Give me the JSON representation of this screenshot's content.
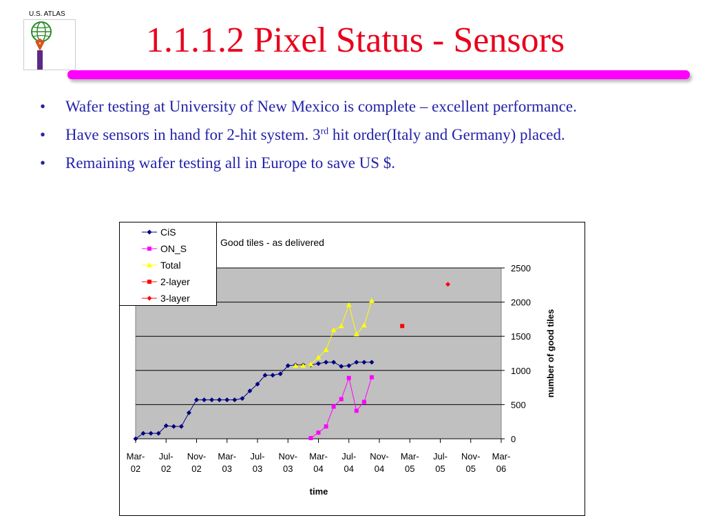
{
  "header": {
    "logo_text": "U.S. ATLAS",
    "title": "1.1.1.2 Pixel Status - Sensors"
  },
  "bullets": [
    {
      "text": "Wafer testing at University of New Mexico is complete – excellent performance."
    },
    {
      "text_before": "Have sensors in hand for 2-hit system. 3",
      "sup": "rd",
      "text_after": " hit order(Italy and Germany) placed."
    },
    {
      "text": "Remaining wafer testing all in Europe to save US $."
    }
  ],
  "colors": {
    "title": "#e8001c",
    "bullet_text": "#2222aa",
    "accent_bar": "#ff00ff",
    "plot_area": "#c0c0c0",
    "CiS": "#000080",
    "ON_S": "#ff00ff",
    "Total": "#ffff00",
    "2-layer": "#ff0000",
    "3-layer": "#ff0000"
  },
  "chart_data": {
    "type": "line",
    "title": "Good tiles - as delivered",
    "xlabel": "time",
    "ylabel": "number of good tiles",
    "ylim": [
      0,
      2500
    ],
    "yticks": [
      0,
      500,
      1000,
      1500,
      2000,
      2500
    ],
    "xticks": [
      "Mar-02",
      "Jul-02",
      "Nov-02",
      "Mar-03",
      "Jul-03",
      "Nov-03",
      "Mar-04",
      "Jul-04",
      "Nov-04",
      "Mar-05",
      "Jul-05",
      "Nov-05",
      "Mar-06"
    ],
    "grid": "horizontal",
    "legend": "top-left",
    "series": [
      {
        "name": "CiS",
        "marker": "diamond",
        "points": [
          [
            "2002-03-01",
            0
          ],
          [
            "2002-04-01",
            80
          ],
          [
            "2002-05-01",
            80
          ],
          [
            "2002-06-01",
            80
          ],
          [
            "2002-07-01",
            190
          ],
          [
            "2002-08-01",
            180
          ],
          [
            "2002-09-01",
            180
          ],
          [
            "2002-10-01",
            380
          ],
          [
            "2002-11-01",
            570
          ],
          [
            "2002-12-01",
            570
          ],
          [
            "2003-01-01",
            570
          ],
          [
            "2003-02-01",
            570
          ],
          [
            "2003-03-01",
            570
          ],
          [
            "2003-04-01",
            570
          ],
          [
            "2003-05-01",
            590
          ],
          [
            "2003-06-01",
            700
          ],
          [
            "2003-07-01",
            800
          ],
          [
            "2003-08-01",
            930
          ],
          [
            "2003-09-01",
            930
          ],
          [
            "2003-10-01",
            950
          ],
          [
            "2003-11-01",
            1070
          ],
          [
            "2003-12-01",
            1080
          ],
          [
            "2004-01-01",
            1080
          ],
          [
            "2004-02-01",
            1080
          ],
          [
            "2004-03-01",
            1100
          ],
          [
            "2004-04-01",
            1120
          ],
          [
            "2004-05-01",
            1120
          ],
          [
            "2004-06-01",
            1060
          ],
          [
            "2004-07-01",
            1070
          ],
          [
            "2004-08-01",
            1120
          ],
          [
            "2004-09-01",
            1120
          ],
          [
            "2004-10-01",
            1120
          ]
        ]
      },
      {
        "name": "ON_S",
        "marker": "square",
        "points": [
          [
            "2004-02-01",
            10
          ],
          [
            "2004-03-01",
            90
          ],
          [
            "2004-04-01",
            180
          ],
          [
            "2004-05-01",
            470
          ],
          [
            "2004-06-01",
            580
          ],
          [
            "2004-07-01",
            890
          ],
          [
            "2004-08-01",
            410
          ],
          [
            "2004-09-01",
            540
          ],
          [
            "2004-10-01",
            900
          ]
        ]
      },
      {
        "name": "Total",
        "marker": "triangle",
        "points": [
          [
            "2003-12-01",
            1070
          ],
          [
            "2004-01-01",
            1070
          ],
          [
            "2004-02-01",
            1090
          ],
          [
            "2004-03-01",
            1190
          ],
          [
            "2004-04-01",
            1300
          ],
          [
            "2004-05-01",
            1590
          ],
          [
            "2004-06-01",
            1650
          ],
          [
            "2004-07-01",
            1960
          ],
          [
            "2004-08-01",
            1530
          ],
          [
            "2004-09-01",
            1660
          ],
          [
            "2004-10-01",
            2020
          ]
        ]
      },
      {
        "name": "2-layer",
        "marker": "square",
        "points": [
          [
            "2005-02-01",
            1650
          ]
        ]
      },
      {
        "name": "3-layer",
        "marker": "diamond",
        "points": [
          [
            "2005-08-01",
            2260
          ]
        ]
      }
    ]
  }
}
